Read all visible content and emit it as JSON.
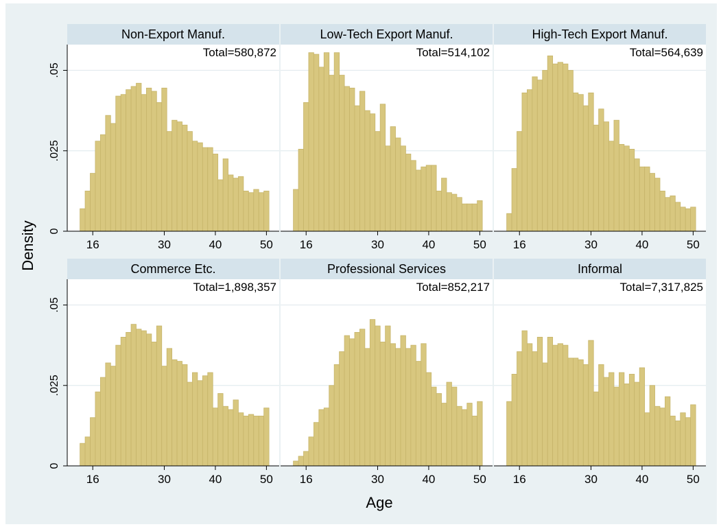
{
  "chart_data": [
    {
      "type": "histogram",
      "title": "Non-Export Manuf.",
      "annotation": "Total=580,872",
      "color": "#d8c77f",
      "bins": [
        13.5,
        14.5,
        15.5,
        16.5,
        17.5,
        18.5,
        19.5,
        20.5,
        21.5,
        22.5,
        23.5,
        24.5,
        25.5,
        26.5,
        27.5,
        28.5,
        29.5,
        30.5,
        31.5,
        32.5,
        33.5,
        34.5,
        35.5,
        36.5,
        37.5,
        38.5,
        39.5,
        40.5,
        41.5,
        42.5,
        43.5,
        44.5,
        45.5,
        46.5,
        47.5,
        48.5,
        49.5,
        50.5
      ],
      "values": [
        0.007,
        0.0125,
        0.018,
        0.028,
        0.03,
        0.036,
        0.0335,
        0.042,
        0.0425,
        0.044,
        0.045,
        0.046,
        0.0425,
        0.0445,
        0.0435,
        0.04,
        0.0445,
        0.031,
        0.0345,
        0.034,
        0.033,
        0.031,
        0.028,
        0.0275,
        0.026,
        0.026,
        0.024,
        0.016,
        0.0225,
        0.0175,
        0.0165,
        0.017,
        0.0125,
        0.012,
        0.013,
        0.012,
        0.0125
      ],
      "xlim": [
        11,
        52.5
      ],
      "ylim": [
        0,
        0.058
      ],
      "xticks": [
        16,
        30,
        40,
        50
      ],
      "yticks": [
        0,
        {
          "value": 0.025,
          "label": ".025"
        },
        {
          "value": 0.05,
          "label": ".05"
        }
      ],
      "grid": true
    },
    {
      "type": "histogram",
      "title": "Low-Tech Export Manuf.",
      "annotation": "Total=514,102",
      "color": "#d8c77f",
      "bins": [
        13.5,
        14.5,
        15.5,
        16.5,
        17.5,
        18.5,
        19.5,
        20.5,
        21.5,
        22.5,
        23.5,
        24.5,
        25.5,
        26.5,
        27.5,
        28.5,
        29.5,
        30.5,
        31.5,
        32.5,
        33.5,
        34.5,
        35.5,
        36.5,
        37.5,
        38.5,
        39.5,
        40.5,
        41.5,
        42.5,
        43.5,
        44.5,
        45.5,
        46.5,
        47.5,
        48.5,
        49.5,
        50.5
      ],
      "values": [
        0.013,
        0.0255,
        0.04,
        0.0555,
        0.055,
        0.051,
        0.0555,
        0.0485,
        0.0555,
        0.0485,
        0.045,
        0.0445,
        0.039,
        0.0435,
        0.0375,
        0.0365,
        0.031,
        0.0395,
        0.0265,
        0.0325,
        0.029,
        0.0265,
        0.024,
        0.022,
        0.019,
        0.02,
        0.0205,
        0.0205,
        0.0125,
        0.0165,
        0.012,
        0.0115,
        0.0105,
        0.0085,
        0.0085,
        0.0085,
        0.0095
      ],
      "xlim": [
        11,
        52.5
      ],
      "ylim": [
        0,
        0.058
      ],
      "xticks": [
        16,
        30,
        40,
        50
      ],
      "yticks": [
        0,
        {
          "value": 0.025,
          "label": ".025"
        },
        {
          "value": 0.05,
          "label": ".05"
        }
      ],
      "grid": true
    },
    {
      "type": "histogram",
      "title": "High-Tech Export Manuf.",
      "annotation": "Total=564,639",
      "color": "#d8c77f",
      "bins": [
        13.5,
        14.5,
        15.5,
        16.5,
        17.5,
        18.5,
        19.5,
        20.5,
        21.5,
        22.5,
        23.5,
        24.5,
        25.5,
        26.5,
        27.5,
        28.5,
        29.5,
        30.5,
        31.5,
        32.5,
        33.5,
        34.5,
        35.5,
        36.5,
        37.5,
        38.5,
        39.5,
        40.5,
        41.5,
        42.5,
        43.5,
        44.5,
        45.5,
        46.5,
        47.5,
        48.5,
        49.5,
        50.5
      ],
      "values": [
        0.0055,
        0.0195,
        0.031,
        0.043,
        0.044,
        0.048,
        0.047,
        0.05,
        0.0545,
        0.052,
        0.0525,
        0.052,
        0.05,
        0.043,
        0.0425,
        0.039,
        0.043,
        0.033,
        0.038,
        0.034,
        0.028,
        0.0345,
        0.027,
        0.0265,
        0.0255,
        0.0225,
        0.02,
        0.02,
        0.018,
        0.0165,
        0.0125,
        0.0105,
        0.011,
        0.009,
        0.0075,
        0.007,
        0.0075
      ],
      "xlim": [
        11,
        52.5
      ],
      "ylim": [
        0,
        0.058
      ],
      "xticks": [
        16,
        30,
        40,
        50
      ],
      "yticks": [
        0,
        {
          "value": 0.025,
          "label": ".025"
        },
        {
          "value": 0.05,
          "label": ".05"
        }
      ],
      "grid": true
    },
    {
      "type": "histogram",
      "title": "Commerce Etc.",
      "annotation": "Total=1,898,357",
      "color": "#d8c77f",
      "bins": [
        13.5,
        14.5,
        15.5,
        16.5,
        17.5,
        18.5,
        19.5,
        20.5,
        21.5,
        22.5,
        23.5,
        24.5,
        25.5,
        26.5,
        27.5,
        28.5,
        29.5,
        30.5,
        31.5,
        32.5,
        33.5,
        34.5,
        35.5,
        36.5,
        37.5,
        38.5,
        39.5,
        40.5,
        41.5,
        42.5,
        43.5,
        44.5,
        45.5,
        46.5,
        47.5,
        48.5,
        49.5,
        50.5
      ],
      "values": [
        0.007,
        0.009,
        0.015,
        0.023,
        0.0275,
        0.032,
        0.031,
        0.0375,
        0.04,
        0.0415,
        0.044,
        0.0425,
        0.042,
        0.041,
        0.0385,
        0.0435,
        0.031,
        0.0365,
        0.033,
        0.0325,
        0.0315,
        0.026,
        0.029,
        0.0265,
        0.028,
        0.029,
        0.018,
        0.0225,
        0.0185,
        0.0175,
        0.0205,
        0.0165,
        0.0155,
        0.016,
        0.0155,
        0.0155,
        0.018
      ],
      "xlim": [
        11,
        52.5
      ],
      "ylim": [
        0,
        0.058
      ],
      "xticks": [
        16,
        30,
        40,
        50
      ],
      "yticks": [
        0,
        {
          "value": 0.025,
          "label": ".025"
        },
        {
          "value": 0.05,
          "label": ".05"
        }
      ],
      "grid": true
    },
    {
      "type": "histogram",
      "title": "Professional Services",
      "annotation": "Total=852,217",
      "color": "#d8c77f",
      "bins": [
        13.5,
        14.5,
        15.5,
        16.5,
        17.5,
        18.5,
        19.5,
        20.5,
        21.5,
        22.5,
        23.5,
        24.5,
        25.5,
        26.5,
        27.5,
        28.5,
        29.5,
        30.5,
        31.5,
        32.5,
        33.5,
        34.5,
        35.5,
        36.5,
        37.5,
        38.5,
        39.5,
        40.5,
        41.5,
        42.5,
        43.5,
        44.5,
        45.5,
        46.5,
        47.5,
        48.5,
        49.5,
        50.5
      ],
      "values": [
        0.0015,
        0.003,
        0.0045,
        0.009,
        0.0135,
        0.0175,
        0.018,
        0.025,
        0.0315,
        0.0355,
        0.0405,
        0.0395,
        0.0415,
        0.0425,
        0.0365,
        0.0455,
        0.0435,
        0.0385,
        0.0435,
        0.038,
        0.0365,
        0.0405,
        0.0365,
        0.0375,
        0.0325,
        0.038,
        0.029,
        0.0245,
        0.0225,
        0.0195,
        0.026,
        0.0245,
        0.0185,
        0.0175,
        0.0195,
        0.0155,
        0.02
      ],
      "xlim": [
        11,
        52.5
      ],
      "ylim": [
        0,
        0.058
      ],
      "xticks": [
        16,
        30,
        40,
        50
      ],
      "yticks": [
        0,
        {
          "value": 0.025,
          "label": ".025"
        },
        {
          "value": 0.05,
          "label": ".05"
        }
      ],
      "grid": true
    },
    {
      "type": "histogram",
      "title": "Informal",
      "annotation": "Total=7,317,825",
      "color": "#d8c77f",
      "bins": [
        13.5,
        14.5,
        15.5,
        16.5,
        17.5,
        18.5,
        19.5,
        20.5,
        21.5,
        22.5,
        23.5,
        24.5,
        25.5,
        26.5,
        27.5,
        28.5,
        29.5,
        30.5,
        31.5,
        32.5,
        33.5,
        34.5,
        35.5,
        36.5,
        37.5,
        38.5,
        39.5,
        40.5,
        41.5,
        42.5,
        43.5,
        44.5,
        45.5,
        46.5,
        47.5,
        48.5,
        49.5,
        50.5
      ],
      "values": [
        0.02,
        0.0285,
        0.0355,
        0.042,
        0.038,
        0.0355,
        0.04,
        0.032,
        0.04,
        0.0375,
        0.038,
        0.0375,
        0.0335,
        0.0335,
        0.033,
        0.0315,
        0.039,
        0.023,
        0.0315,
        0.0275,
        0.029,
        0.0245,
        0.029,
        0.0255,
        0.0285,
        0.026,
        0.0305,
        0.0165,
        0.025,
        0.0185,
        0.018,
        0.0215,
        0.0155,
        0.014,
        0.0165,
        0.015,
        0.019
      ],
      "xlim": [
        11,
        52.5
      ],
      "ylim": [
        0,
        0.058
      ],
      "xticks": [
        16,
        30,
        40,
        50
      ],
      "yticks": [
        0,
        {
          "value": 0.025,
          "label": ".025"
        },
        {
          "value": 0.05,
          "label": ".05"
        }
      ],
      "grid": true
    }
  ],
  "shared": {
    "ylabel": "Density",
    "xlabel": "Age"
  }
}
